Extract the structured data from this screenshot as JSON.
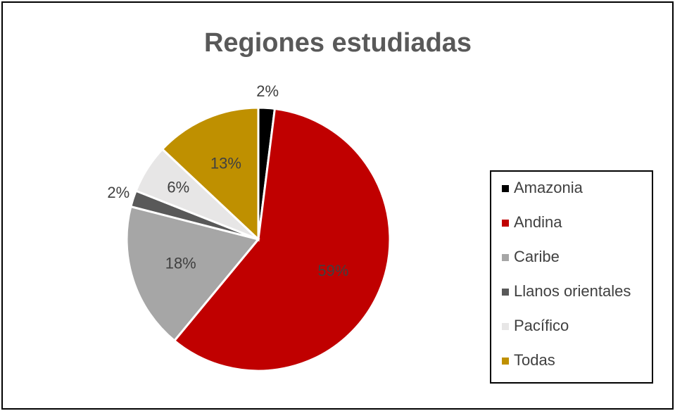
{
  "chart_data": {
    "type": "pie",
    "title": "Regiones estudiadas",
    "categories": [
      "Amazonia",
      "Andina",
      "Caribe",
      "Llanos orientales",
      "Pacífico",
      "Todas"
    ],
    "values": [
      2,
      59,
      18,
      2,
      6,
      13
    ],
    "value_labels": [
      "2%",
      "59%",
      "18%",
      "2%",
      "6%",
      "13%"
    ],
    "colors": [
      "#000000",
      "#c00000",
      "#a6a6a6",
      "#595959",
      "#e7e6e6",
      "#bf9000"
    ],
    "legend": "right"
  }
}
